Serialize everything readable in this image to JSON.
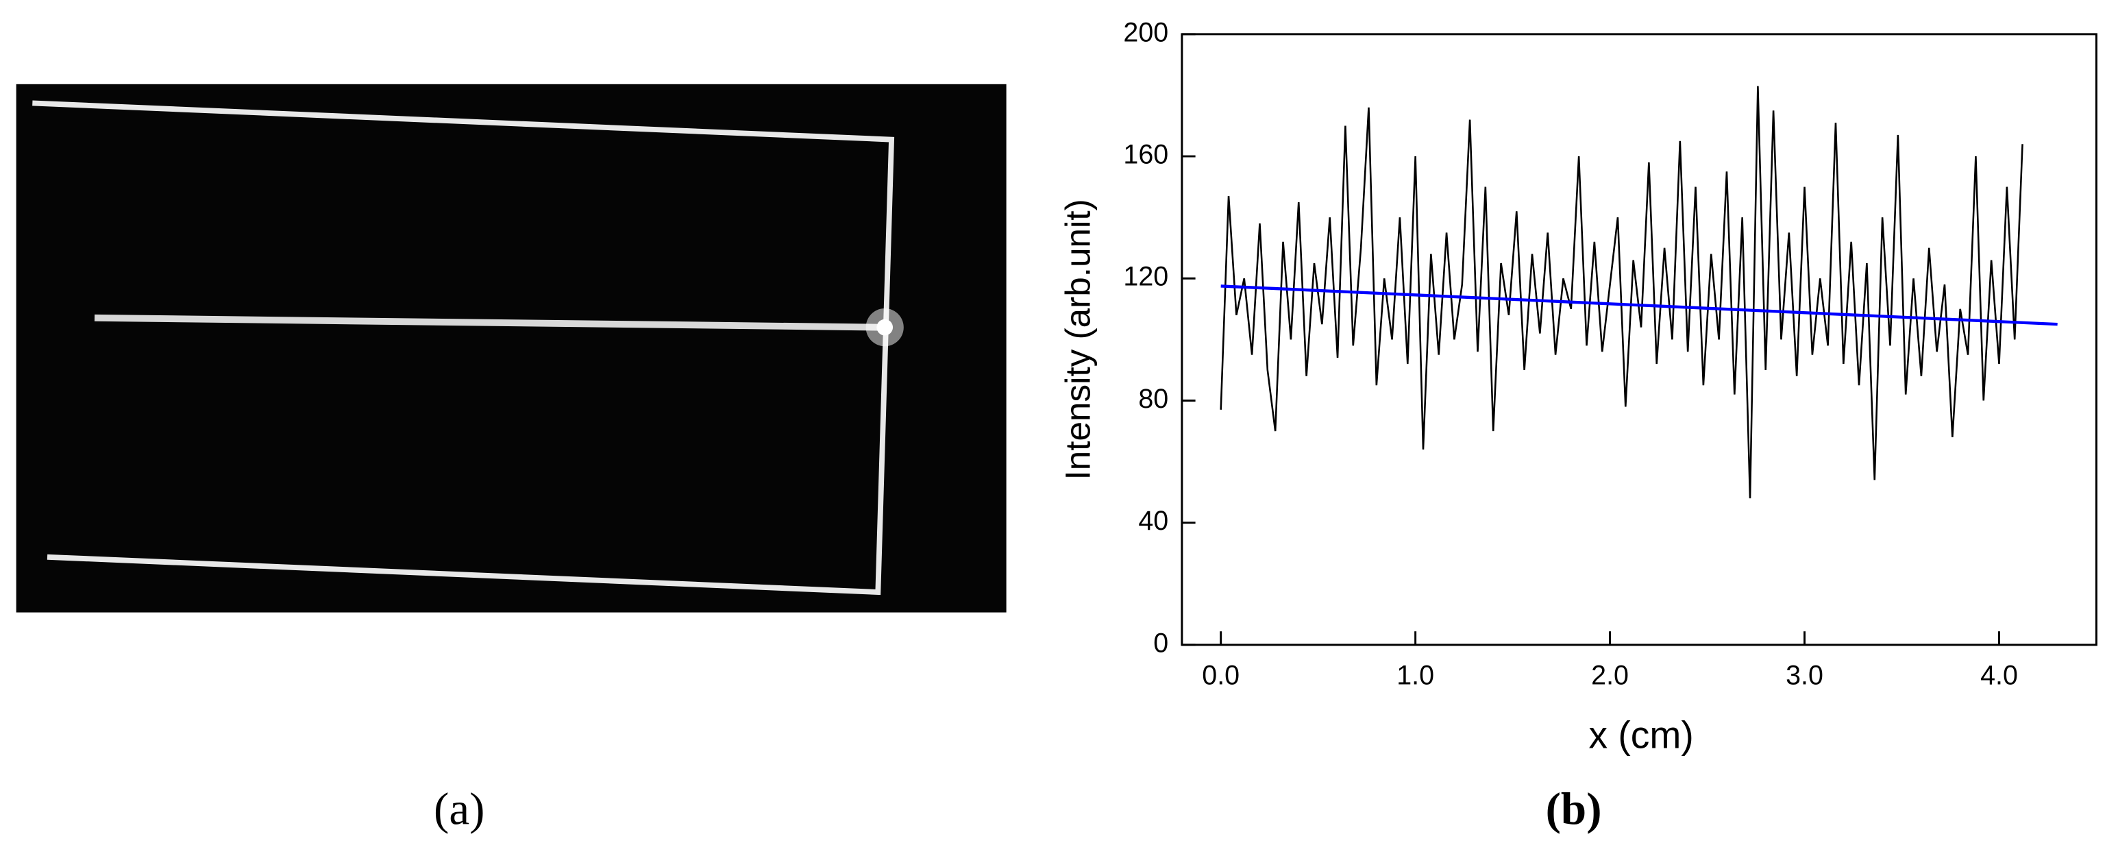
{
  "panel_a_label": "(a)",
  "chart_data": {
    "type": "line",
    "panel_label": "(b)",
    "x_label": "x   (cm)",
    "y_label": "Intensity (arb.unit)",
    "xlim": [
      -0.2,
      4.5
    ],
    "ylim": [
      0,
      200
    ],
    "xticks": [
      {
        "value": 0,
        "label": "0.0"
      },
      {
        "value": 1,
        "label": "1.0"
      },
      {
        "value": 2,
        "label": "2.0"
      },
      {
        "value": 3,
        "label": "3.0"
      },
      {
        "value": 4,
        "label": "4.0"
      }
    ],
    "yticks": [
      0,
      40,
      80,
      120,
      160,
      200
    ],
    "series": [
      {
        "color": "#000000",
        "x": [
          0,
          0.04,
          0.08,
          0.12,
          0.16,
          0.2,
          0.24,
          0.28,
          0.32,
          0.36,
          0.4,
          0.44,
          0.48,
          0.52,
          0.56,
          0.6,
          0.64,
          0.68,
          0.72,
          0.76,
          0.8,
          0.84,
          0.88,
          0.92,
          0.96,
          1.0,
          1.04,
          1.08,
          1.12,
          1.16,
          1.2,
          1.24,
          1.28,
          1.32,
          1.36,
          1.4,
          1.44,
          1.48,
          1.52,
          1.56,
          1.6,
          1.64,
          1.68,
          1.72,
          1.76,
          1.8,
          1.84,
          1.88,
          1.92,
          1.96,
          2.0,
          2.04,
          2.08,
          2.12,
          2.16,
          2.2,
          2.24,
          2.28,
          2.32,
          2.36,
          2.4,
          2.44,
          2.48,
          2.52,
          2.56,
          2.6,
          2.64,
          2.68,
          2.72,
          2.76,
          2.8,
          2.84,
          2.88,
          2.92,
          2.96,
          3.0,
          3.04,
          3.08,
          3.12,
          3.16,
          3.2,
          3.24,
          3.28,
          3.32,
          3.36,
          3.4,
          3.44,
          3.48,
          3.52,
          3.56,
          3.6,
          3.64,
          3.68,
          3.72,
          3.76,
          3.8,
          3.84,
          3.88,
          3.92,
          3.96,
          4.0,
          4.04,
          4.08,
          4.12
        ],
        "values": [
          77,
          147,
          108,
          120,
          95,
          138,
          90,
          70,
          132,
          100,
          145,
          88,
          125,
          105,
          140,
          94,
          170,
          98,
          130,
          176,
          85,
          120,
          100,
          140,
          92,
          160,
          64,
          128,
          95,
          135,
          100,
          118,
          172,
          96,
          150,
          70,
          125,
          108,
          142,
          90,
          128,
          102,
          135,
          95,
          120,
          110,
          160,
          98,
          132,
          96,
          118,
          140,
          78,
          126,
          104,
          158,
          92,
          130,
          100,
          165,
          96,
          150,
          85,
          128,
          100,
          155,
          82,
          140,
          48,
          183,
          90,
          175,
          100,
          135,
          88,
          150,
          95,
          120,
          98,
          171,
          92,
          132,
          85,
          125,
          54,
          140,
          98,
          167,
          82,
          120,
          88,
          130,
          96,
          118,
          68,
          110,
          95,
          160,
          80,
          126,
          92,
          150,
          100,
          164
        ]
      },
      {
        "color": "#0000ff",
        "x": [
          0,
          4.3
        ],
        "values": [
          117.5,
          105
        ]
      }
    ]
  }
}
